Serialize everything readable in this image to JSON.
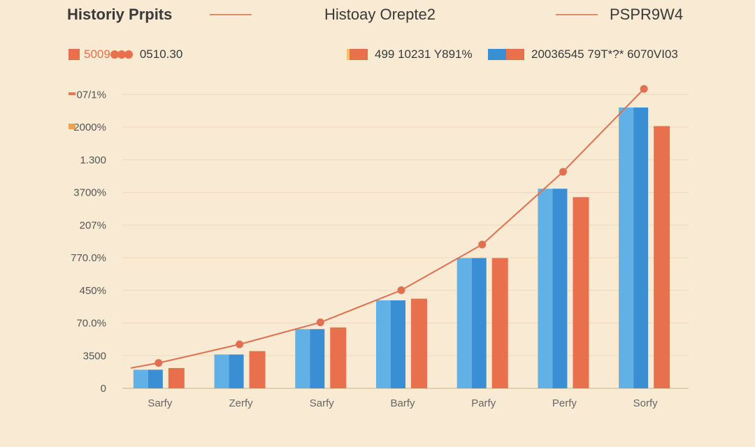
{
  "header": {
    "left_title": "Historiy Prpits",
    "center_title": "Histoay Orepte2",
    "right_title": "PSPR9W4"
  },
  "legend": {
    "item1": {
      "label": "5009",
      "suffix": "0510.30"
    },
    "item2": {
      "label": "499  10231 Y891%"
    },
    "item3": {
      "label": "20036545  79T*?* 6070VI03"
    }
  },
  "colors": {
    "background": "#f8ead3",
    "blue_light": "#62b1e6",
    "blue_dark": "#3a8ed4",
    "orange": "#e8704c",
    "line": "#e07050",
    "grid": "#ead9bd"
  },
  "chart_data": {
    "type": "bar",
    "title": "Histoay Orepte2",
    "categories": [
      "Sarfy",
      "Zerfy",
      "Sarfy",
      "Barfy",
      "Parfy",
      "Perfy",
      "Sorfy"
    ],
    "y_tick_labels": [
      "0",
      "3500",
      "70.0%",
      "450%",
      "770.0%",
      "207%",
      "3700%",
      "1.300",
      "2000%",
      "07/1%"
    ],
    "ylim": [
      0,
      9
    ],
    "series": [
      {
        "name": "blue",
        "values": [
          0.55,
          1.0,
          1.75,
          2.6,
          3.85,
          5.9,
          8.3
        ]
      },
      {
        "name": "orange",
        "values": [
          0.6,
          1.1,
          1.8,
          2.65,
          3.85,
          5.65,
          7.75
        ]
      },
      {
        "name": "trend",
        "type": "line",
        "values": [
          0.75,
          1.3,
          1.95,
          2.9,
          4.25,
          6.4,
          8.85
        ]
      }
    ]
  }
}
